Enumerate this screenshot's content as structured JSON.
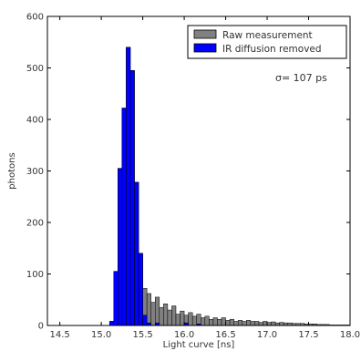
{
  "chart_data": {
    "type": "bar",
    "title": "",
    "xlabel": "Light curve [ns]",
    "ylabel": "photons",
    "xlim": [
      14.35,
      18.0
    ],
    "ylim": [
      0,
      600
    ],
    "xticks": [
      "14.5",
      "15.0",
      "15.5",
      "16.0",
      "16.5",
      "17.0",
      "17.5",
      "18.0"
    ],
    "xtick_values": [
      14.5,
      15.0,
      15.5,
      16.0,
      16.5,
      17.0,
      17.5,
      18.0
    ],
    "yticks": [
      "0",
      "100",
      "200",
      "300",
      "400",
      "500",
      "600"
    ],
    "ytick_values": [
      0,
      100,
      200,
      300,
      400,
      500,
      600
    ],
    "grid": false,
    "legend_position": "top-right",
    "annotation": "σ= 107 ps",
    "bin_start": 14.35,
    "bin_width": 0.05,
    "series": [
      {
        "name": "Raw measurement",
        "color": "#808080",
        "values": [
          0,
          0,
          0,
          0,
          0,
          0,
          0,
          0,
          0,
          0,
          0,
          0,
          0,
          0,
          0,
          8,
          105,
          305,
          422,
          540,
          495,
          278,
          140,
          72,
          62,
          45,
          55,
          35,
          42,
          30,
          38,
          22,
          28,
          20,
          25,
          18,
          22,
          15,
          18,
          12,
          15,
          12,
          15,
          10,
          12,
          8,
          10,
          8,
          10,
          8,
          8,
          6,
          8,
          6,
          7,
          5,
          6,
          5,
          5,
          4,
          4,
          4,
          3,
          3,
          3,
          2,
          2,
          2,
          1,
          1,
          1,
          1,
          1
        ]
      },
      {
        "name": "IR diffusion removed",
        "color": "#0000ff",
        "values": [
          0,
          0,
          0,
          0,
          0,
          0,
          0,
          0,
          0,
          0,
          0,
          0,
          0,
          0,
          0,
          8,
          105,
          305,
          422,
          540,
          495,
          278,
          140,
          20,
          5,
          0,
          5,
          0,
          0,
          0,
          0,
          0,
          0,
          5,
          0,
          0,
          3,
          0,
          0,
          0,
          0,
          0,
          0,
          0,
          0,
          0,
          0,
          0,
          0,
          0,
          0,
          0,
          0,
          0,
          0,
          0,
          0,
          0,
          0,
          0,
          0,
          0,
          0,
          0,
          0,
          0,
          0,
          0,
          0,
          0,
          0,
          0,
          0
        ]
      }
    ]
  }
}
